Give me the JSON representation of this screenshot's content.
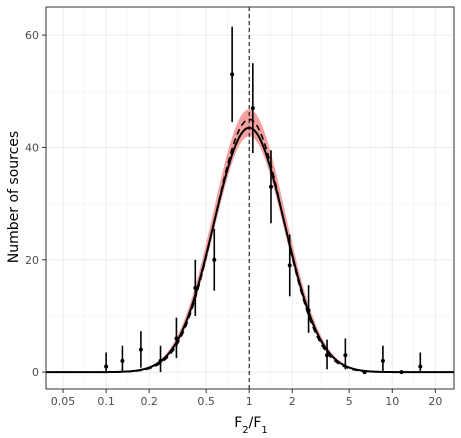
{
  "chart_data": {
    "type": "scatter",
    "xscale": "log",
    "xlim": [
      0.038,
      27
    ],
    "ylim": [
      -3,
      65
    ],
    "xlabel": {
      "base": "F",
      "sub1": "2",
      "slash": "/",
      "base2": "F",
      "sub2": "1"
    },
    "ylabel": "Number of sources",
    "xticks": [
      {
        "value": 0.05,
        "label": "0.05"
      },
      {
        "value": 0.1,
        "label": "0.1"
      },
      {
        "value": 0.2,
        "label": "0.2"
      },
      {
        "value": 0.5,
        "label": "0.5"
      },
      {
        "value": 1,
        "label": "1"
      },
      {
        "value": 2,
        "label": "2"
      },
      {
        "value": 5,
        "label": "5"
      },
      {
        "value": 10,
        "label": "10"
      },
      {
        "value": 20,
        "label": "20"
      }
    ],
    "yticks": [
      {
        "value": 0,
        "label": "0"
      },
      {
        "value": 20,
        "label": "20"
      },
      {
        "value": 40,
        "label": "40"
      },
      {
        "value": 60,
        "label": "60"
      }
    ],
    "grid": true,
    "reference_line": {
      "x": 1,
      "style": "dashed",
      "color": "#000000"
    },
    "points": [
      {
        "x": 0.1,
        "y": 1,
        "ylo": 0,
        "yhi": 3.5
      },
      {
        "x": 0.13,
        "y": 2,
        "ylo": 0,
        "yhi": 4.7
      },
      {
        "x": 0.175,
        "y": 4,
        "ylo": 0.8,
        "yhi": 7.3
      },
      {
        "x": 0.24,
        "y": 2,
        "ylo": 0,
        "yhi": 4.7
      },
      {
        "x": 0.31,
        "y": 6,
        "ylo": 2.5,
        "yhi": 9.7
      },
      {
        "x": 0.42,
        "y": 15,
        "ylo": 10,
        "yhi": 20
      },
      {
        "x": 0.57,
        "y": 20,
        "ylo": 14.5,
        "yhi": 25.5
      },
      {
        "x": 0.76,
        "y": 53,
        "ylo": 44.5,
        "yhi": 61.5
      },
      {
        "x": 1.06,
        "y": 47,
        "ylo": 39,
        "yhi": 55
      },
      {
        "x": 1.42,
        "y": 33,
        "ylo": 26.5,
        "yhi": 39.5
      },
      {
        "x": 1.92,
        "y": 19,
        "ylo": 13.5,
        "yhi": 24.5
      },
      {
        "x": 2.6,
        "y": 11,
        "ylo": 7,
        "yhi": 15.5
      },
      {
        "x": 3.5,
        "y": 3,
        "ylo": 0.5,
        "yhi": 5.8
      },
      {
        "x": 4.7,
        "y": 3,
        "ylo": 0.5,
        "yhi": 6
      },
      {
        "x": 6.4,
        "y": 0,
        "ylo": 0,
        "yhi": 0
      },
      {
        "x": 8.6,
        "y": 2,
        "ylo": 0,
        "yhi": 4.7
      },
      {
        "x": 11.6,
        "y": 0,
        "ylo": 0,
        "yhi": 0
      },
      {
        "x": 15.7,
        "y": 1,
        "ylo": 0,
        "yhi": 3.5
      }
    ],
    "model": {
      "center": 1.0,
      "curves": [
        {
          "style": "solid",
          "color": "#000000",
          "amp": 43.5,
          "sigma": 0.248
        },
        {
          "style": "dashed",
          "color": "#000000",
          "amp": 45.0,
          "sigma": 0.24
        }
      ],
      "band": {
        "color": "#f08080",
        "amp_lo": 42.0,
        "amp_hi": 46.8,
        "sigma_lo": 0.244,
        "sigma_hi": 0.252
      }
    }
  }
}
